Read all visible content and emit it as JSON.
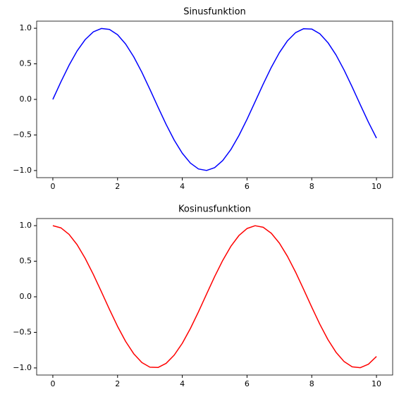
{
  "chart_data": [
    {
      "type": "line",
      "title": "Sinusfunktion",
      "x": [
        0,
        0.25,
        0.5,
        0.75,
        1,
        1.25,
        1.5,
        1.75,
        2,
        2.25,
        2.5,
        2.75,
        3,
        3.25,
        3.5,
        3.75,
        4,
        4.25,
        4.5,
        4.75,
        5,
        5.25,
        5.5,
        5.75,
        6,
        6.25,
        6.5,
        6.75,
        7,
        7.25,
        7.5,
        7.75,
        8,
        8.25,
        8.5,
        8.75,
        9,
        9.25,
        9.5,
        9.75,
        10
      ],
      "series": [
        {
          "color": "#0000ff",
          "values": [
            0,
            0.247,
            0.479,
            0.682,
            0.841,
            0.949,
            0.997,
            0.984,
            0.909,
            0.778,
            0.598,
            0.382,
            0.141,
            -0.108,
            -0.351,
            -0.572,
            -0.757,
            -0.895,
            -0.978,
            -0.999,
            -0.959,
            -0.859,
            -0.706,
            -0.508,
            -0.279,
            -0.033,
            0.215,
            0.45,
            0.657,
            0.824,
            0.938,
            0.994,
            0.989,
            0.923,
            0.798,
            0.625,
            0.412,
            0.174,
            -0.075,
            -0.319,
            -0.544
          ]
        }
      ],
      "xlim": [
        -0.5,
        10.5
      ],
      "xticks": [
        0,
        2,
        4,
        6,
        8,
        10
      ],
      "ylim": [
        -1.1,
        1.1
      ],
      "yticks": [
        {
          "value": -1,
          "label": "−1.0"
        },
        {
          "value": -0.5,
          "label": "−0.5"
        },
        {
          "value": 0,
          "label": "0.0"
        },
        {
          "value": 0.5,
          "label": "0.5"
        },
        {
          "value": 1,
          "label": "1.0"
        }
      ]
    },
    {
      "type": "line",
      "title": "Kosinusfunktion",
      "x": [
        0,
        0.25,
        0.5,
        0.75,
        1,
        1.25,
        1.5,
        1.75,
        2,
        2.25,
        2.5,
        2.75,
        3,
        3.25,
        3.5,
        3.75,
        4,
        4.25,
        4.5,
        4.75,
        5,
        5.25,
        5.5,
        5.75,
        6,
        6.25,
        6.5,
        6.75,
        7,
        7.25,
        7.5,
        7.75,
        8,
        8.25,
        8.5,
        8.75,
        9,
        9.25,
        9.5,
        9.75,
        10
      ],
      "series": [
        {
          "color": "#ff0000",
          "values": [
            1,
            0.969,
            0.878,
            0.732,
            0.54,
            0.315,
            0.071,
            -0.178,
            -0.416,
            -0.628,
            -0.801,
            -0.924,
            -0.99,
            -0.994,
            -0.936,
            -0.82,
            -0.654,
            -0.446,
            -0.211,
            0.038,
            0.284,
            0.512,
            0.709,
            0.861,
            0.96,
            0.999,
            0.977,
            0.893,
            0.754,
            0.568,
            0.347,
            0.104,
            -0.146,
            -0.386,
            -0.602,
            -0.78,
            -0.911,
            -0.985,
            -0.997,
            -0.948,
            -0.839
          ]
        }
      ],
      "xlim": [
        -0.5,
        10.5
      ],
      "xticks": [
        0,
        2,
        4,
        6,
        8,
        10
      ],
      "ylim": [
        -1.1,
        1.1
      ],
      "yticks": [
        {
          "value": -1,
          "label": "−1.0"
        },
        {
          "value": -0.5,
          "label": "−0.5"
        },
        {
          "value": 0,
          "label": "0.0"
        },
        {
          "value": 0.5,
          "label": "0.5"
        },
        {
          "value": 1,
          "label": "1.0"
        }
      ]
    }
  ]
}
